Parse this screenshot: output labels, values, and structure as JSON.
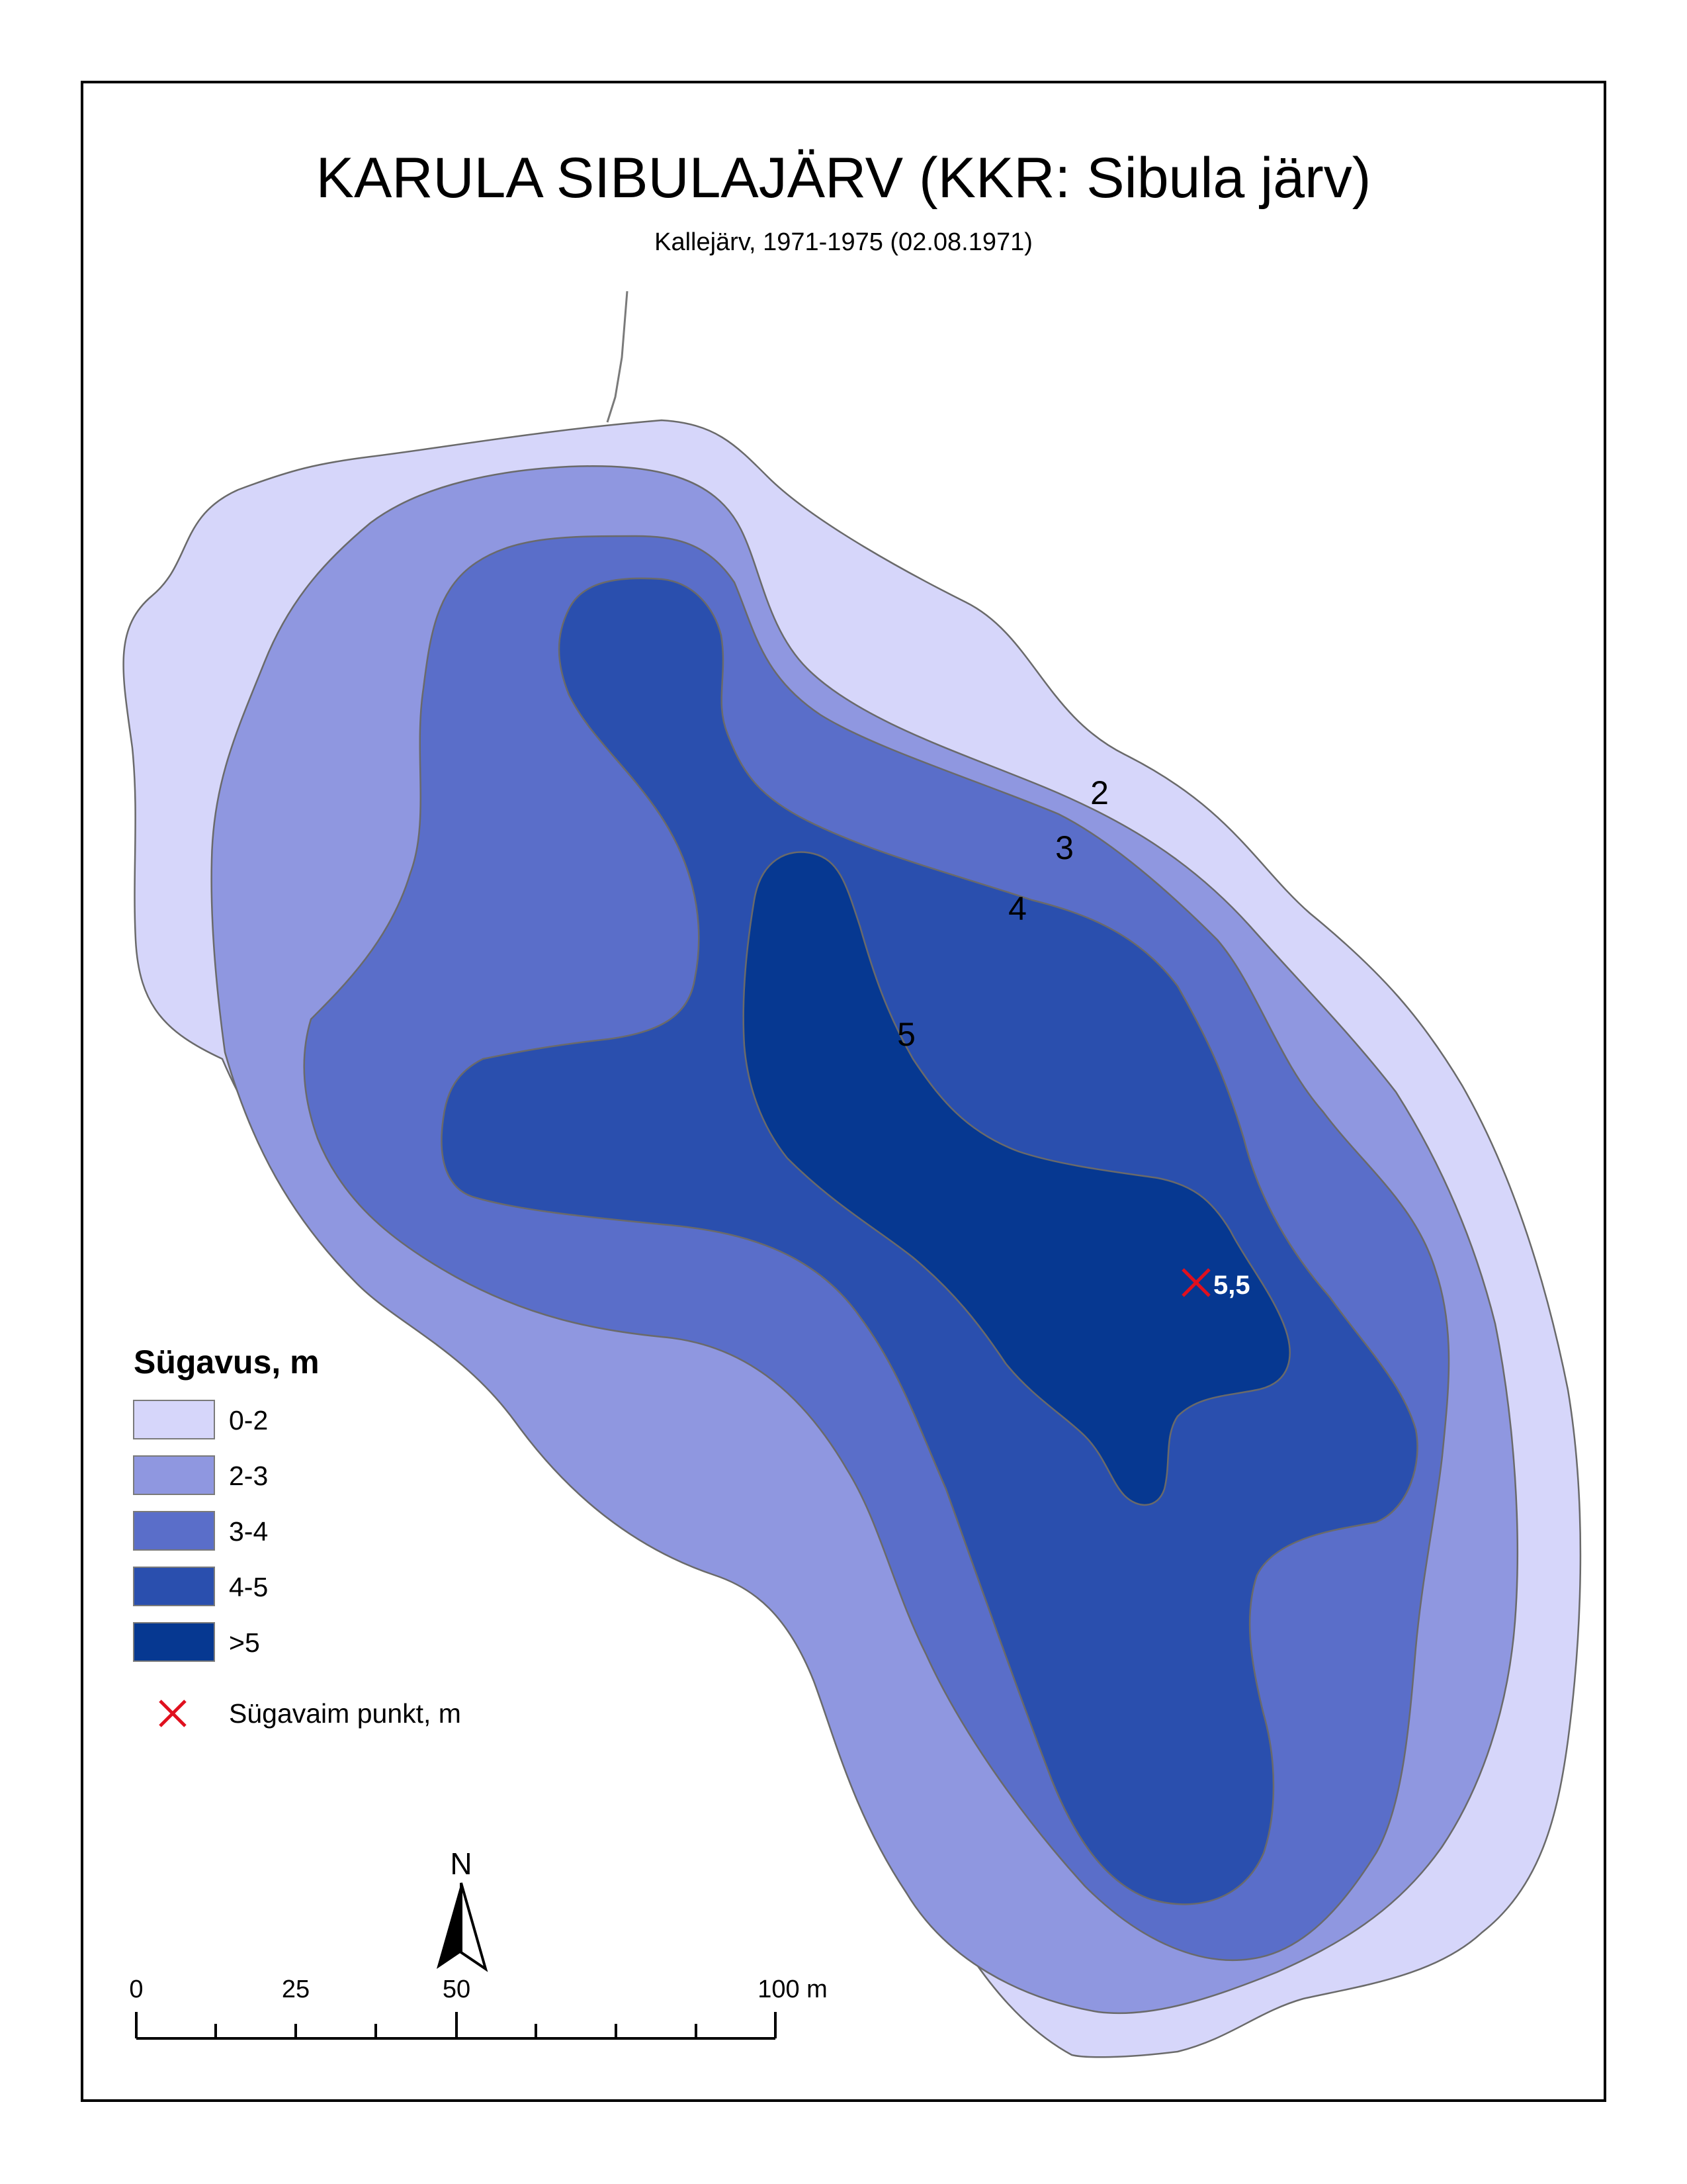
{
  "map": {
    "title": "KARULA SIBULAJÄRV (KKR: Sibula järv)",
    "subtitle": "Kallejärv, 1971-1975 (02.08.1971)"
  },
  "contour_labels": [
    "2",
    "3",
    "4",
    "5"
  ],
  "deepest_point": {
    "value": "5,5"
  },
  "legend": {
    "title": "Sügavus, m",
    "classes": [
      {
        "label": "0-2",
        "color": "#d6d6fa"
      },
      {
        "label": "2-3",
        "color": "#8f97e0"
      },
      {
        "label": "3-4",
        "color": "#5a6ec9"
      },
      {
        "label": "4-5",
        "color": "#2a4fae"
      },
      {
        "label": ">5",
        "color": "#063891"
      }
    ],
    "deepest_point_label": "Sügavaim punkt, m",
    "deepest_point_color": "#e0101e"
  },
  "north_arrow": {
    "letter": "N"
  },
  "scale_bar": {
    "labels": [
      "0",
      "25",
      "50",
      "100 m"
    ]
  }
}
